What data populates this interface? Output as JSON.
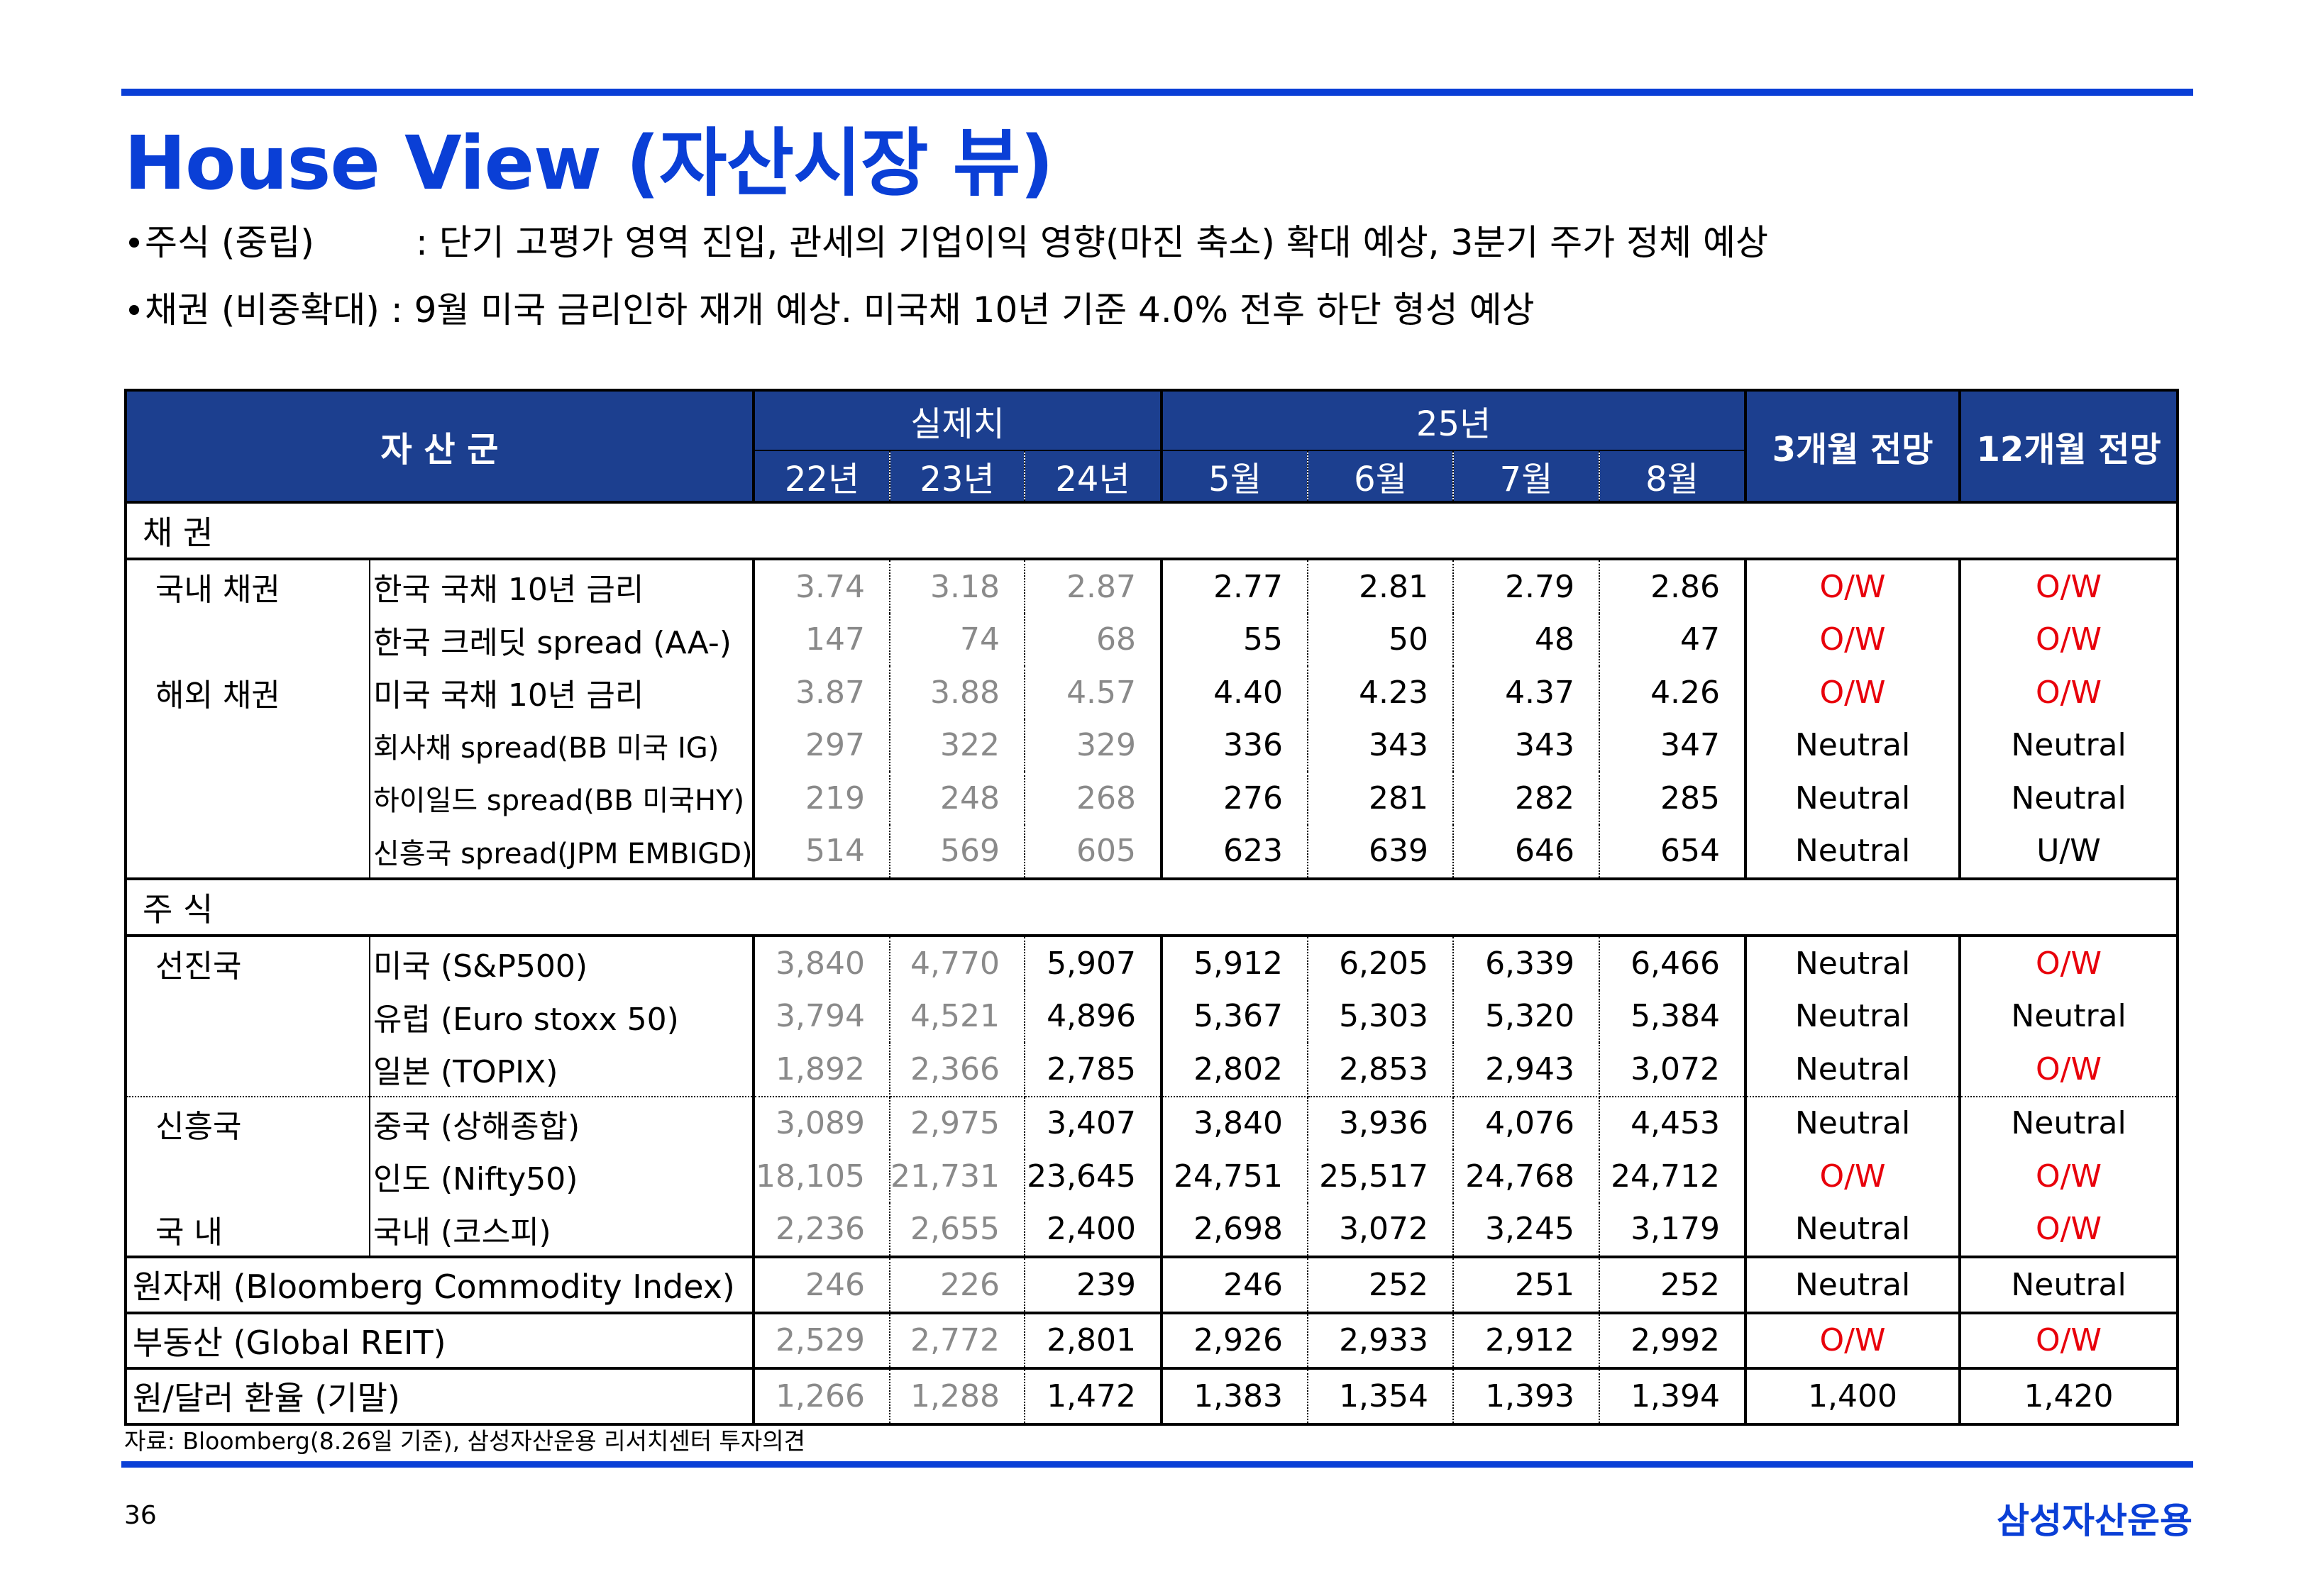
{
  "header": {
    "title": "House View (자산시장 뷰)"
  },
  "bullets": [
    {
      "tag": "주식 (중립)",
      "text": ": 단기 고평가 영역 진입, 관세의 기업이익 영향(마진 축소) 확대 예상, 3분기 주가 정체 예상"
    },
    {
      "tag": "채권 (비중확대)",
      "text": ": 9월 미국 금리인하 재개 예상. 미국채 10년 기준 4.0% 전후 하단 형성 예상"
    }
  ],
  "table": {
    "header": {
      "asset_class": "자 산 군",
      "actual": "실제치",
      "year25": "25년",
      "outlook3": "3개월 전망",
      "outlook12": "12개월 전망",
      "cols": [
        "22년",
        "23년",
        "24년",
        "5월",
        "6월",
        "7월",
        "8월"
      ]
    },
    "sections": {
      "bonds": "채     권",
      "stocks": "주     식"
    },
    "rows": [
      {
        "group": "국내 채권",
        "item": "한국 국채 10년 금리",
        "v": [
          "3.74",
          "3.18",
          "2.87",
          "2.77",
          "2.81",
          "2.79",
          "2.86"
        ],
        "o3": "O/W",
        "o12": "O/W"
      },
      {
        "group": "",
        "item": "한국 크레딧 spread (AA-)",
        "v": [
          "147",
          "74",
          "68",
          "55",
          "50",
          "48",
          "47"
        ],
        "o3": "O/W",
        "o12": "O/W"
      },
      {
        "group": "해외 채권",
        "item": "미국 국채 10년 금리",
        "v": [
          "3.87",
          "3.88",
          "4.57",
          "4.40",
          "4.23",
          "4.37",
          "4.26"
        ],
        "o3": "O/W",
        "o12": "O/W"
      },
      {
        "group": "",
        "item": "회사채 spread(BB 미국 IG)",
        "v": [
          "297",
          "322",
          "329",
          "336",
          "343",
          "343",
          "347"
        ],
        "o3": "Neutral",
        "o12": "Neutral"
      },
      {
        "group": "",
        "item": "하이일드 spread(BB 미국HY)",
        "v": [
          "219",
          "248",
          "268",
          "276",
          "281",
          "282",
          "285"
        ],
        "o3": "Neutral",
        "o12": "Neutral"
      },
      {
        "group": "",
        "item": "신흥국 spread(JPM EMBIGD)",
        "v": [
          "514",
          "569",
          "605",
          "623",
          "639",
          "646",
          "654"
        ],
        "o3": "Neutral",
        "o12": "U/W"
      },
      {
        "group": "선진국",
        "item": "미국 (S&P500)",
        "v": [
          "3,840",
          "4,770",
          "5,907",
          "5,912",
          "6,205",
          "6,339",
          "6,466"
        ],
        "o3": "Neutral",
        "o12": "O/W"
      },
      {
        "group": "",
        "item": "유럽 (Euro stoxx 50)",
        "v": [
          "3,794",
          "4,521",
          "4,896",
          "5,367",
          "5,303",
          "5,320",
          "5,384"
        ],
        "o3": "Neutral",
        "o12": "Neutral"
      },
      {
        "group": "",
        "item": "일본 (TOPIX)",
        "v": [
          "1,892",
          "2,366",
          "2,785",
          "2,802",
          "2,853",
          "2,943",
          "3,072"
        ],
        "o3": "Neutral",
        "o12": "O/W"
      },
      {
        "group": "신흥국",
        "item": "중국 (상해종합)",
        "v": [
          "3,089",
          "2,975",
          "3,407",
          "3,840",
          "3,936",
          "4,076",
          "4,453"
        ],
        "o3": "Neutral",
        "o12": "Neutral"
      },
      {
        "group": "",
        "item": "인도 (Nifty50)",
        "v": [
          "18,105",
          "21,731",
          "23,645",
          "24,751",
          "25,517",
          "24,768",
          "24,712"
        ],
        "o3": "O/W",
        "o12": "O/W"
      },
      {
        "group": "국     내",
        "item": "국내 (코스피)",
        "v": [
          "2,236",
          "2,655",
          "2,400",
          "2,698",
          "3,072",
          "3,245",
          "3,179"
        ],
        "o3": "Neutral",
        "o12": "O/W"
      },
      {
        "group": "원자재 (Bloomberg Commodity Index)",
        "item": "",
        "v": [
          "246",
          "226",
          "239",
          "246",
          "252",
          "251",
          "252"
        ],
        "o3": "Neutral",
        "o12": "Neutral"
      },
      {
        "group": "부동산 (Global REIT)",
        "item": "",
        "v": [
          "2,529",
          "2,772",
          "2,801",
          "2,926",
          "2,933",
          "2,912",
          "2,992"
        ],
        "o3": "O/W",
        "o12": "O/W"
      },
      {
        "group": "원/달러 환율 (기말)",
        "item": "",
        "v": [
          "1,266",
          "1,288",
          "1,472",
          "1,383",
          "1,354",
          "1,393",
          "1,394"
        ],
        "o3": "1,400",
        "o12": "1,420"
      }
    ]
  },
  "footer": {
    "source": "자료: Bloomberg(8.26일 기준), 삼성자산운용 리서치센터 투자의견",
    "page": "36",
    "brand": "삼성자산운용"
  },
  "colors": {
    "accent": "#0a3fd6",
    "header_bg": "#1c3f8f",
    "overweight": "#e8000b"
  }
}
